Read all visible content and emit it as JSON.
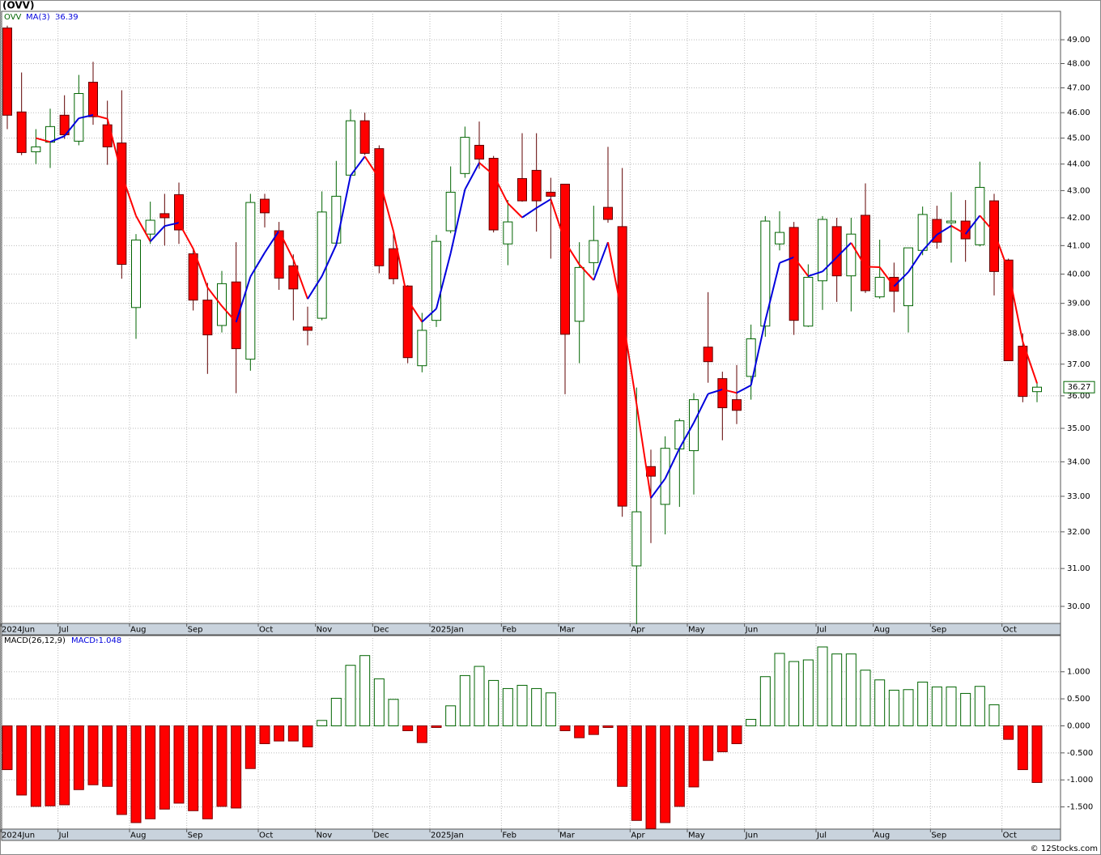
{
  "chart_data": [
    {
      "type": "candlestick",
      "title": "(OVV)",
      "symbol": "OVV",
      "log_scale": true,
      "grid": true,
      "up_color": "#006400",
      "down_color": "#ff0000",
      "categories": [
        "2024Jun",
        null,
        null,
        null,
        "Jul",
        null,
        null,
        null,
        null,
        "Aug",
        null,
        null,
        null,
        "Sep",
        null,
        null,
        null,
        null,
        "Oct",
        null,
        null,
        null,
        "Nov",
        null,
        null,
        null,
        "Dec",
        null,
        null,
        null,
        "2025Jan",
        null,
        null,
        null,
        null,
        "Feb",
        null,
        null,
        null,
        "Mar",
        null,
        null,
        null,
        null,
        "Apr",
        null,
        null,
        null,
        "May",
        null,
        null,
        null,
        "Jun",
        null,
        null,
        null,
        null,
        "Jul",
        null,
        null,
        null,
        "Aug",
        null,
        null,
        null,
        "Sep",
        null,
        null,
        null,
        null,
        "Oct",
        null,
        null
      ],
      "open": [
        49.5,
        46.03,
        44.47,
        44.84,
        45.9,
        44.88,
        47.23,
        45.52,
        44.81,
        38.86,
        41.41,
        42.15,
        42.85,
        40.71,
        39.11,
        38.26,
        39.73,
        37.16,
        42.68,
        41.53,
        40.29,
        38.21,
        38.5,
        41.09,
        43.58,
        45.68,
        44.59,
        40.89,
        39.59,
        36.95,
        38.43,
        41.53,
        43.64,
        44.72,
        44.22,
        41.06,
        43.45,
        43.76,
        42.94,
        43.24,
        38.4,
        40.4,
        42.38,
        41.68,
        31.07,
        33.86,
        32.77,
        34.38,
        34.33,
        37.55,
        36.54,
        35.88,
        36.61,
        38.24,
        41.06,
        41.65,
        38.24,
        39.77,
        41.68,
        39.94,
        42.09,
        39.22,
        39.89,
        38.92,
        40.83,
        41.94,
        41.82,
        41.88,
        41.03,
        42.62,
        40.49,
        37.58,
        36.13
      ],
      "high": [
        49.6,
        47.63,
        45.35,
        46.16,
        46.7,
        47.53,
        48.07,
        46.48,
        46.9,
        41.41,
        42.59,
        42.88,
        43.3,
        40.89,
        39.7,
        40.11,
        41.12,
        42.88,
        42.88,
        41.85,
        40.69,
        38.89,
        42.97,
        44.12,
        46.13,
        46.0,
        44.72,
        41.41,
        39.62,
        38.68,
        41.38,
        43.91,
        45.45,
        45.65,
        44.31,
        42.65,
        45.19,
        45.19,
        43.48,
        43.24,
        41.12,
        42.44,
        44.66,
        43.85,
        36.26,
        34.36,
        34.76,
        35.3,
        36.08,
        39.38,
        36.76,
        36.97,
        38.29,
        42.06,
        42.24,
        41.85,
        40.34,
        42.06,
        42.0,
        42.0,
        43.27,
        41.21,
        40.4,
        40.92,
        42.41,
        42.44,
        42.94,
        42.65,
        44.09,
        42.88,
        40.54,
        38.0,
        36.41
      ],
      "low": [
        45.35,
        44.34,
        44.0,
        43.85,
        44.97,
        44.72,
        45.52,
        43.97,
        39.84,
        37.82,
        41.06,
        41.0,
        41.06,
        38.76,
        36.69,
        38.03,
        36.08,
        36.79,
        41.65,
        39.46,
        38.43,
        37.61,
        38.43,
        41.09,
        43.48,
        44.34,
        40.03,
        39.65,
        37.03,
        36.74,
        38.21,
        41.44,
        43.48,
        43.82,
        41.47,
        40.31,
        42.59,
        41.5,
        40.54,
        36.05,
        37.03,
        39.97,
        41.82,
        32.42,
        29.54,
        31.69,
        31.93,
        32.7,
        33.05,
        36.41,
        34.64,
        35.13,
        35.88,
        37.89,
        40.83,
        37.95,
        38.21,
        38.78,
        39.05,
        38.73,
        39.35,
        39.16,
        38.7,
        38.03,
        40.66,
        40.89,
        40.4,
        40.43,
        40.97,
        39.27,
        37.11,
        35.8,
        35.8
      ],
      "close": [
        45.9,
        44.44,
        44.66,
        45.45,
        45.13,
        46.77,
        45.84,
        44.66,
        40.34,
        41.2,
        41.91,
        42.0,
        41.56,
        39.11,
        37.95,
        39.67,
        37.5,
        42.56,
        42.18,
        39.86,
        39.49,
        38.1,
        42.21,
        42.79,
        45.68,
        44.41,
        40.29,
        39.84,
        37.21,
        38.1,
        41.15,
        42.94,
        45.03,
        44.19,
        41.56,
        41.85,
        42.62,
        42.62,
        42.79,
        37.97,
        40.23,
        41.18,
        41.94,
        32.72,
        32.56,
        33.58,
        34.4,
        35.23,
        35.88,
        37.08,
        35.63,
        35.55,
        37.82,
        41.88,
        41.47,
        38.43,
        39.89,
        41.94,
        39.94,
        41.41,
        39.43,
        39.89,
        39.41,
        40.92,
        42.12,
        41.12,
        41.88,
        41.24,
        43.12,
        40.09,
        37.11,
        35.98,
        36.27
      ],
      "ma": {
        "name": "MA(3)",
        "rise_color": "#0000dd",
        "fall_color": "#ff0000",
        "values": [
          null,
          null,
          45.0,
          44.85,
          45.08,
          45.78,
          45.91,
          45.76,
          43.61,
          42.07,
          41.15,
          41.7,
          41.82,
          40.89,
          39.54,
          38.91,
          38.37,
          39.91,
          40.75,
          41.53,
          40.51,
          39.15,
          39.93,
          41.03,
          43.56,
          44.29,
          43.46,
          41.51,
          39.11,
          38.38,
          38.82,
          40.73,
          43.04,
          44.05,
          43.59,
          42.53,
          42.01,
          42.36,
          42.68,
          41.13,
          40.33,
          39.79,
          41.12,
          38.61,
          35.74,
          32.95,
          33.51,
          34.4,
          35.17,
          36.06,
          36.2,
          36.09,
          36.33,
          38.42,
          40.39,
          40.59,
          39.93,
          40.09,
          40.59,
          41.1,
          40.26,
          40.24,
          39.58,
          40.07,
          40.82,
          41.39,
          41.71,
          41.41,
          42.08,
          41.48,
          40.11,
          37.73,
          36.39
        ]
      },
      "ylim": [
        29.56,
        50.22
      ],
      "yticks": [
        {
          "value": 49,
          "label": "49.00"
        },
        {
          "value": 48,
          "label": "48.00"
        },
        {
          "value": 47,
          "label": "47.00"
        },
        {
          "value": 46,
          "label": "46.00"
        },
        {
          "value": 45,
          "label": "45.00"
        },
        {
          "value": 44,
          "label": "44.00"
        },
        {
          "value": 43,
          "label": "43.00"
        },
        {
          "value": 42,
          "label": "42.00"
        },
        {
          "value": 41,
          "label": "41.00"
        },
        {
          "value": 40,
          "label": "40.00"
        },
        {
          "value": 39,
          "label": "39.00"
        },
        {
          "value": 38,
          "label": "38.00"
        },
        {
          "value": 37,
          "label": "37.00"
        },
        {
          "value": 36,
          "label": "36.00"
        },
        {
          "value": 35,
          "label": "35.00"
        },
        {
          "value": 34,
          "label": "34.00"
        },
        {
          "value": 33,
          "label": "33.00"
        },
        {
          "value": 32,
          "label": "32.00"
        },
        {
          "value": 31,
          "label": "31.00"
        },
        {
          "value": 30,
          "label": "30.00"
        }
      ]
    },
    {
      "type": "bar",
      "title": "MACD(26,12,9)",
      "value_name": "MACD:",
      "grid": true,
      "up_color": "#006400",
      "down_color": "#ff0000",
      "values": [
        -0.81,
        -1.28,
        -1.49,
        -1.48,
        -1.46,
        -1.18,
        -1.09,
        -1.12,
        -1.64,
        -1.79,
        -1.72,
        -1.54,
        -1.43,
        -1.57,
        -1.72,
        -1.49,
        -1.52,
        -0.79,
        -0.33,
        -0.28,
        -0.28,
        -0.39,
        0.1,
        0.51,
        1.12,
        1.3,
        0.87,
        0.49,
        -0.09,
        -0.31,
        -0.03,
        0.37,
        0.93,
        1.1,
        0.84,
        0.69,
        0.75,
        0.69,
        0.61,
        -0.09,
        -0.22,
        -0.16,
        -0.03,
        -1.12,
        -1.75,
        -1.9,
        -1.79,
        -1.49,
        -1.13,
        -0.64,
        -0.48,
        -0.33,
        0.12,
        0.91,
        1.34,
        1.19,
        1.22,
        1.46,
        1.33,
        1.33,
        1.03,
        0.85,
        0.66,
        0.67,
        0.81,
        0.72,
        0.72,
        0.6,
        0.73,
        0.39,
        -0.25,
        -0.81,
        -1.048
      ],
      "ylim": [
        -1.91,
        1.67
      ],
      "yticks": [
        {
          "value": 1,
          "label": "1.000"
        },
        {
          "value": 0.5,
          "label": "0.500"
        },
        {
          "value": 0,
          "label": "0.000"
        },
        {
          "value": -0.5,
          "label": "-0.500"
        },
        {
          "value": -1,
          "label": "-1.000"
        },
        {
          "value": -1.5,
          "label": "-1.500"
        }
      ]
    }
  ],
  "footer": "© 12Stocks.com"
}
